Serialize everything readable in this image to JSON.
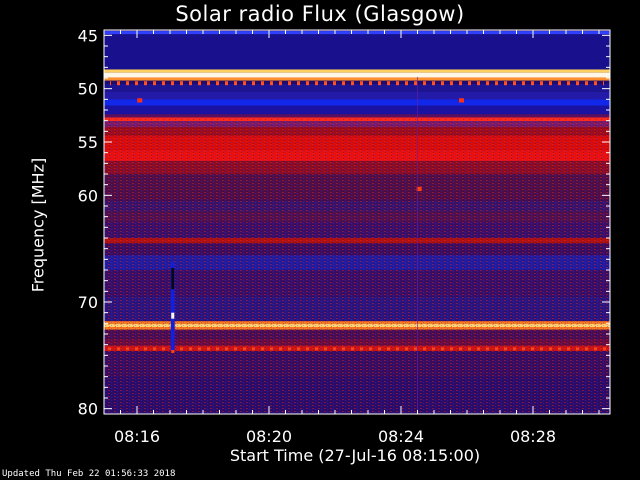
{
  "chart_data": {
    "type": "heatmap",
    "title": "Solar radio Flux (Glasgow)",
    "xlabel": "Start Time (27-Jul-16 08:15:00)",
    "ylabel": "Frequency [MHz]",
    "x_axis": {
      "unit": "time",
      "range": [
        "08:15:00",
        "08:30:20"
      ],
      "ticks": [
        "08:16",
        "08:20",
        "08:24",
        "08:28"
      ]
    },
    "y_axis": {
      "unit": "MHz",
      "range": [
        44.5,
        80.5
      ],
      "inverted": true,
      "ticks": [
        45,
        50,
        55,
        60,
        70,
        80
      ]
    },
    "background_level": "dark blue / purple",
    "bands": [
      {
        "f1": 44.6,
        "f2": 44.9,
        "color": "#3040ff"
      },
      {
        "f1": 44.9,
        "f2": 48.2,
        "color": "#18108c"
      },
      {
        "f1": 48.2,
        "f2": 48.5,
        "color": "#ffcf60"
      },
      {
        "f1": 48.5,
        "f2": 48.95,
        "color": "#fff8e8"
      },
      {
        "f1": 48.95,
        "f2": 49.25,
        "color": "#ff9030"
      },
      {
        "f1": 49.25,
        "f2": 49.55,
        "color": "#200c6a"
      },
      {
        "f1": 49.55,
        "f2": 50.3,
        "color": "#1c1490"
      },
      {
        "f1": 50.3,
        "f2": 51.0,
        "color": "#241aa8"
      },
      {
        "f1": 51.0,
        "f2": 51.6,
        "color": "#1228e8"
      },
      {
        "f1": 51.6,
        "f2": 52.4,
        "color": "#1a12a0"
      },
      {
        "f1": 52.4,
        "f2": 52.7,
        "color": "#5a1060"
      },
      {
        "f1": 52.7,
        "f2": 53.05,
        "color": "#ff2a1a"
      },
      {
        "f1": 53.05,
        "f2": 53.6,
        "color": "#7a1a6a"
      },
      {
        "f1": 53.6,
        "f2": 54.4,
        "color": "#9c0c1c"
      },
      {
        "f1": 54.4,
        "f2": 55.8,
        "color": "#d80c0c"
      },
      {
        "f1": 55.8,
        "f2": 56.8,
        "color": "#e81010"
      },
      {
        "f1": 56.8,
        "f2": 58.0,
        "color": "#8a0c26"
      },
      {
        "f1": 58.0,
        "f2": 60.5,
        "color": "#500e48"
      },
      {
        "f1": 60.5,
        "f2": 61.5,
        "color": "#3a1268"
      },
      {
        "f1": 61.5,
        "f2": 62.5,
        "color": "#501050"
      },
      {
        "f1": 62.5,
        "f2": 64.0,
        "color": "#3c0e66"
      },
      {
        "f1": 64.0,
        "f2": 64.5,
        "color": "#b01010"
      },
      {
        "f1": 64.5,
        "f2": 65.6,
        "color": "#3e0c5c"
      },
      {
        "f1": 65.6,
        "f2": 67.0,
        "color": "#241a9c"
      },
      {
        "f1": 67.0,
        "f2": 69.5,
        "color": "#3a0e66"
      },
      {
        "f1": 69.5,
        "f2": 71.8,
        "color": "#2c147c"
      },
      {
        "f1": 71.8,
        "f2": 72.05,
        "color": "#ff7a18"
      },
      {
        "f1": 72.05,
        "f2": 72.35,
        "color": "#ffd070"
      },
      {
        "f1": 72.35,
        "f2": 72.6,
        "color": "#ff7a18"
      },
      {
        "f1": 72.6,
        "f2": 73.5,
        "color": "#4a0c52"
      },
      {
        "f1": 73.5,
        "f2": 74.1,
        "color": "#6a0c40"
      },
      {
        "f1": 74.1,
        "f2": 74.6,
        "color": "#d01414"
      },
      {
        "f1": 74.6,
        "f2": 77.0,
        "color": "#3a0c60"
      },
      {
        "f1": 77.0,
        "f2": 80.5,
        "color": "#2c0c68"
      }
    ],
    "events": [
      {
        "time": "08:16:05",
        "f1": 50.9,
        "f2": 51.3,
        "label": "red spot",
        "color": "#ff3010"
      },
      {
        "time": "08:25:50",
        "f1": 50.9,
        "f2": 51.3,
        "label": "red spot",
        "color": "#ff3010"
      },
      {
        "time": "08:24:33",
        "f1": 59.2,
        "f2": 59.6,
        "label": "red spot",
        "color": "#ff4010"
      },
      {
        "time": "08:17:05",
        "f1": 66.3,
        "f2": 74.6,
        "label": "vertical stripe",
        "color": "#1020e0"
      },
      {
        "time": "08:24:30",
        "f1": 48.9,
        "f2": 80.5,
        "label": "faint vertical line",
        "color": "#6a1aa8"
      }
    ],
    "grid": false,
    "legend": "none"
  },
  "footer": {
    "updated": "Updated Thu Feb 22 01:56:33 2018"
  }
}
